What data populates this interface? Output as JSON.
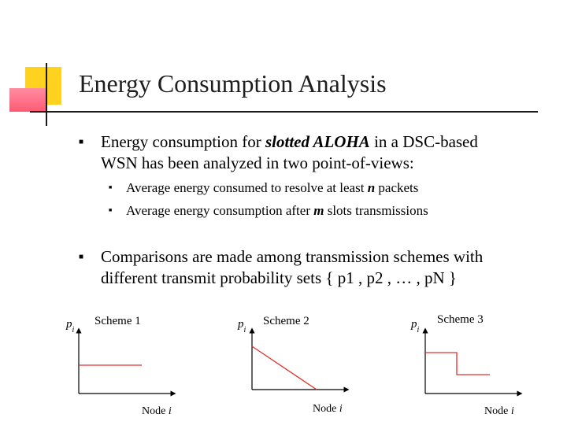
{
  "title": "Energy Consumption Analysis",
  "bullets": [
    {
      "lines": [
        {
          "pre": "Energy consumption for ",
          "em": "slotted ALOHA",
          "post": " in a DSC-based"
        },
        {
          "text": "WSN has been analyzed in two point-of-views:"
        }
      ],
      "sub": [
        {
          "pre": "Average energy consumed to resolve at least ",
          "em": "n",
          "post": " packets"
        },
        {
          "pre": "Average energy consumption after ",
          "em": "m",
          "post": " slots transmissions"
        }
      ]
    },
    {
      "lines": [
        {
          "text": "Comparisons are made among transmission schemes with"
        },
        {
          "text": "different transmit probability sets { p1 , p2 , … , pN }"
        }
      ]
    }
  ],
  "schemes": [
    {
      "name": "Scheme 1",
      "y_label": "pi",
      "x_label": "Node i",
      "profile": "constant"
    },
    {
      "name": "Scheme 2",
      "y_label": "pi",
      "x_label": "Node i",
      "profile": "linear-decreasing"
    },
    {
      "name": "Scheme 3",
      "y_label": "pi",
      "x_label": "Node i",
      "profile": "step-down"
    }
  ],
  "colors": {
    "profile_line": "#e03030",
    "axis": "#000000",
    "bullet": "#000000"
  }
}
